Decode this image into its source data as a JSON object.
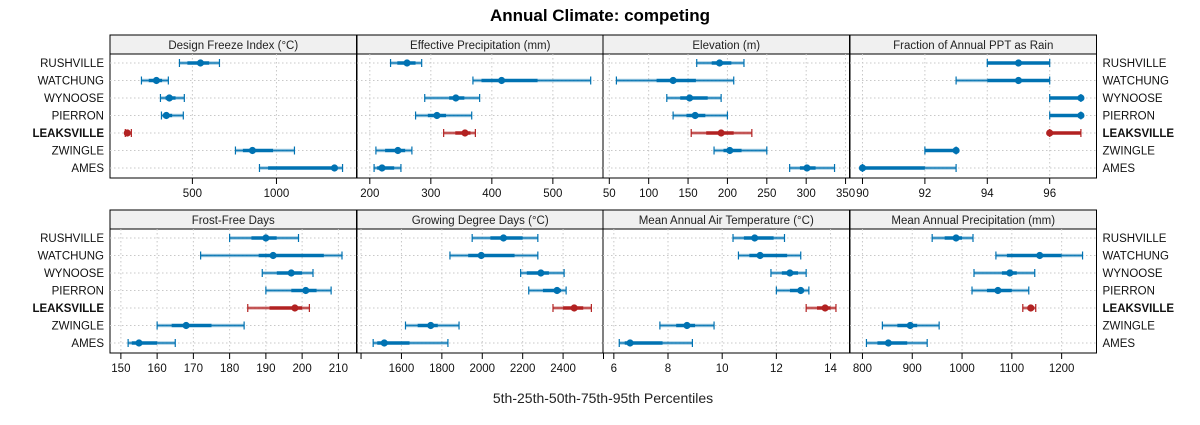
{
  "chart_data": {
    "type": "dot-interval",
    "title": "Annual Climate: competing",
    "xlabel": "5th-25th-50th-75th-95th Percentiles",
    "ylabel": "",
    "grid": true,
    "row_labels": [
      "RUSHVILLE",
      "WATCHUNG",
      "WYNOOSE",
      "PIERRON",
      "LEAKSVILLE",
      "ZWINGLE",
      "AMES"
    ],
    "highlight_row": "LEAKSVILLE",
    "colors": {
      "default": "#0072b2",
      "highlight": "#b22222",
      "strip_bg": "#f0f0f0",
      "grid": "#c8c8c8"
    },
    "percentile_order": [
      "p5",
      "p25",
      "p50",
      "p75",
      "p95"
    ],
    "panels": [
      {
        "title": "Design Freeze Index (°C)",
        "xlim": [
          10,
          1476
        ],
        "ticks": [
          {
            "v": 500,
            "label": "500"
          },
          {
            "v": 1000,
            "label": "1000"
          }
        ],
        "values": {
          "RUSHVILLE": [
            423,
            470,
            548,
            600,
            661
          ],
          "WATCHUNG": [
            197,
            240,
            286,
            320,
            357
          ],
          "WYNOOSE": [
            310,
            340,
            363,
            400,
            452
          ],
          "PIERRON": [
            316,
            330,
            345,
            380,
            446
          ],
          "LEAKSVILLE": [
            101,
            106,
            113,
            125,
            137
          ],
          "ZWINGLE": [
            756,
            800,
            857,
            980,
            1107
          ],
          "AMES": [
            899,
            950,
            1345,
            1360,
            1393
          ]
        }
      },
      {
        "title": "Effective Precipitation (mm)",
        "xlim": [
          179,
          583
        ],
        "ticks": [
          {
            "v": 200,
            "label": "200"
          },
          {
            "v": 300,
            "label": "300"
          },
          {
            "v": 400,
            "label": "400"
          },
          {
            "v": 500,
            "label": "500"
          }
        ],
        "values": {
          "RUSHVILLE": [
            234,
            245,
            261,
            275,
            285
          ],
          "WATCHUNG": [
            369,
            383,
            416,
            475,
            562
          ],
          "WYNOOSE": [
            290,
            330,
            341,
            355,
            380
          ],
          "PIERRON": [
            275,
            295,
            310,
            325,
            367
          ],
          "LEAKSVILLE": [
            321,
            340,
            356,
            365,
            373
          ],
          "ZWINGLE": [
            210,
            225,
            246,
            258,
            269
          ],
          "AMES": [
            207,
            212,
            220,
            240,
            251
          ]
        }
      },
      {
        "title": "Elevation (m)",
        "xlim": [
          42,
          355
        ],
        "ticks": [
          {
            "v": 50,
            "label": "50"
          },
          {
            "v": 100,
            "label": "100"
          },
          {
            "v": 150,
            "label": "150"
          },
          {
            "v": 200,
            "label": "200"
          },
          {
            "v": 250,
            "label": "250"
          },
          {
            "v": 300,
            "label": "300"
          },
          {
            "v": 350,
            "label": "350"
          }
        ],
        "values": {
          "RUSHVILLE": [
            161,
            180,
            190,
            205,
            221
          ],
          "WATCHUNG": [
            59,
            110,
            131,
            160,
            208
          ],
          "WYNOOSE": [
            123,
            140,
            152,
            175,
            192
          ],
          "PIERRON": [
            131,
            148,
            159,
            172,
            200
          ],
          "LEAKSVILLE": [
            154,
            173,
            192,
            208,
            231
          ],
          "ZWINGLE": [
            183,
            195,
            203,
            218,
            250
          ],
          "AMES": [
            279,
            292,
            301,
            312,
            336
          ]
        }
      },
      {
        "title": "Fraction of Annual PPT as Rain",
        "xlim": [
          89.6,
          97.5
        ],
        "ticks": [
          {
            "v": 90,
            "label": "90"
          },
          {
            "v": 92,
            "label": "92"
          },
          {
            "v": 94,
            "label": "94"
          },
          {
            "v": 96,
            "label": "96"
          }
        ],
        "values": {
          "RUSHVILLE": [
            94,
            94,
            95,
            96,
            96
          ],
          "WATCHUNG": [
            93,
            94,
            95,
            96,
            96
          ],
          "WYNOOSE": [
            96,
            96,
            97,
            97,
            97
          ],
          "PIERRON": [
            96,
            96,
            97,
            97,
            97
          ],
          "LEAKSVILLE": [
            96,
            96,
            96,
            97,
            97
          ],
          "ZWINGLE": [
            92,
            92,
            93,
            93,
            93
          ],
          "AMES": [
            90,
            90,
            90,
            92,
            93
          ]
        }
      },
      {
        "title": "Frost-Free Days",
        "xlim": [
          147,
          215
        ],
        "ticks": [
          {
            "v": 150,
            "label": "150"
          },
          {
            "v": 160,
            "label": "160"
          },
          {
            "v": 170,
            "label": "170"
          },
          {
            "v": 180,
            "label": "180"
          },
          {
            "v": 190,
            "label": "190"
          },
          {
            "v": 200,
            "label": "200"
          },
          {
            "v": 210,
            "label": "210"
          }
        ],
        "values": {
          "RUSHVILLE": [
            180,
            186,
            190,
            193,
            199
          ],
          "WATCHUNG": [
            172,
            188,
            192,
            206,
            211
          ],
          "WYNOOSE": [
            189,
            193,
            197,
            200,
            203
          ],
          "PIERRON": [
            190,
            197,
            201,
            204,
            208
          ],
          "LEAKSVILLE": [
            185,
            191,
            198,
            200,
            202
          ],
          "ZWINGLE": [
            160,
            164,
            168,
            175,
            184
          ],
          "AMES": [
            152,
            153,
            155,
            160,
            165
          ]
        }
      },
      {
        "title": "Growing Degree Days (°C)",
        "xlim": [
          1380,
          2600
        ],
        "ticks": [
          {
            "v": 1400,
            "label": ""
          },
          {
            "v": 1600,
            "label": "1600"
          },
          {
            "v": 1800,
            "label": "1800"
          },
          {
            "v": 2000,
            "label": "2000"
          },
          {
            "v": 2200,
            "label": "2200"
          },
          {
            "v": 2400,
            "label": "2400"
          },
          {
            "v": 2600,
            "label": ""
          }
        ],
        "values": {
          "RUSHVILLE": [
            1950,
            2040,
            2105,
            2200,
            2275
          ],
          "WATCHUNG": [
            1840,
            1930,
            1995,
            2160,
            2275
          ],
          "WYNOOSE": [
            2190,
            2220,
            2290,
            2330,
            2405
          ],
          "PIERRON": [
            2230,
            2300,
            2370,
            2390,
            2415
          ],
          "LEAKSVILLE": [
            2350,
            2400,
            2455,
            2500,
            2540
          ],
          "ZWINGLE": [
            1620,
            1680,
            1745,
            1780,
            1885
          ],
          "AMES": [
            1460,
            1480,
            1515,
            1640,
            1830
          ]
        }
      },
      {
        "title": "Mean Annual Air Temperature (°C)",
        "xlim": [
          5.6,
          14.7
        ],
        "ticks": [
          {
            "v": 6,
            "label": "6"
          },
          {
            "v": 8,
            "label": "8"
          },
          {
            "v": 10,
            "label": "10"
          },
          {
            "v": 12,
            "label": "12"
          },
          {
            "v": 14,
            "label": "14"
          }
        ],
        "values": {
          "RUSHVILLE": [
            10.4,
            10.8,
            11.2,
            11.9,
            12.3
          ],
          "WATCHUNG": [
            10.6,
            11.0,
            11.4,
            12.4,
            12.9
          ],
          "WYNOOSE": [
            11.8,
            12.2,
            12.5,
            12.8,
            13.1
          ],
          "PIERRON": [
            12.0,
            12.5,
            12.9,
            13.0,
            13.2
          ],
          "LEAKSVILLE": [
            13.1,
            13.5,
            13.8,
            14.0,
            14.2
          ],
          "ZWINGLE": [
            7.7,
            8.3,
            8.7,
            9.0,
            9.7
          ],
          "AMES": [
            6.2,
            6.4,
            6.6,
            7.8,
            8.9
          ]
        }
      },
      {
        "title": "Mean Annual Precipitation (mm)",
        "xlim": [
          775,
          1270
        ],
        "ticks": [
          {
            "v": 800,
            "label": "800"
          },
          {
            "v": 900,
            "label": "900"
          },
          {
            "v": 1000,
            "label": "1000"
          },
          {
            "v": 1100,
            "label": "1100"
          },
          {
            "v": 1200,
            "label": "1200"
          }
        ],
        "values": {
          "RUSHVILLE": [
            940,
            965,
            988,
            1000,
            1022
          ],
          "WATCHUNG": [
            1068,
            1090,
            1156,
            1200,
            1242
          ],
          "WYNOOSE": [
            1024,
            1080,
            1096,
            1110,
            1146
          ],
          "PIERRON": [
            1020,
            1050,
            1072,
            1100,
            1134
          ],
          "LEAKSVILLE": [
            1122,
            1132,
            1138,
            1144,
            1148
          ],
          "ZWINGLE": [
            840,
            870,
            896,
            910,
            954
          ],
          "AMES": [
            808,
            830,
            852,
            890,
            930
          ]
        }
      }
    ]
  }
}
